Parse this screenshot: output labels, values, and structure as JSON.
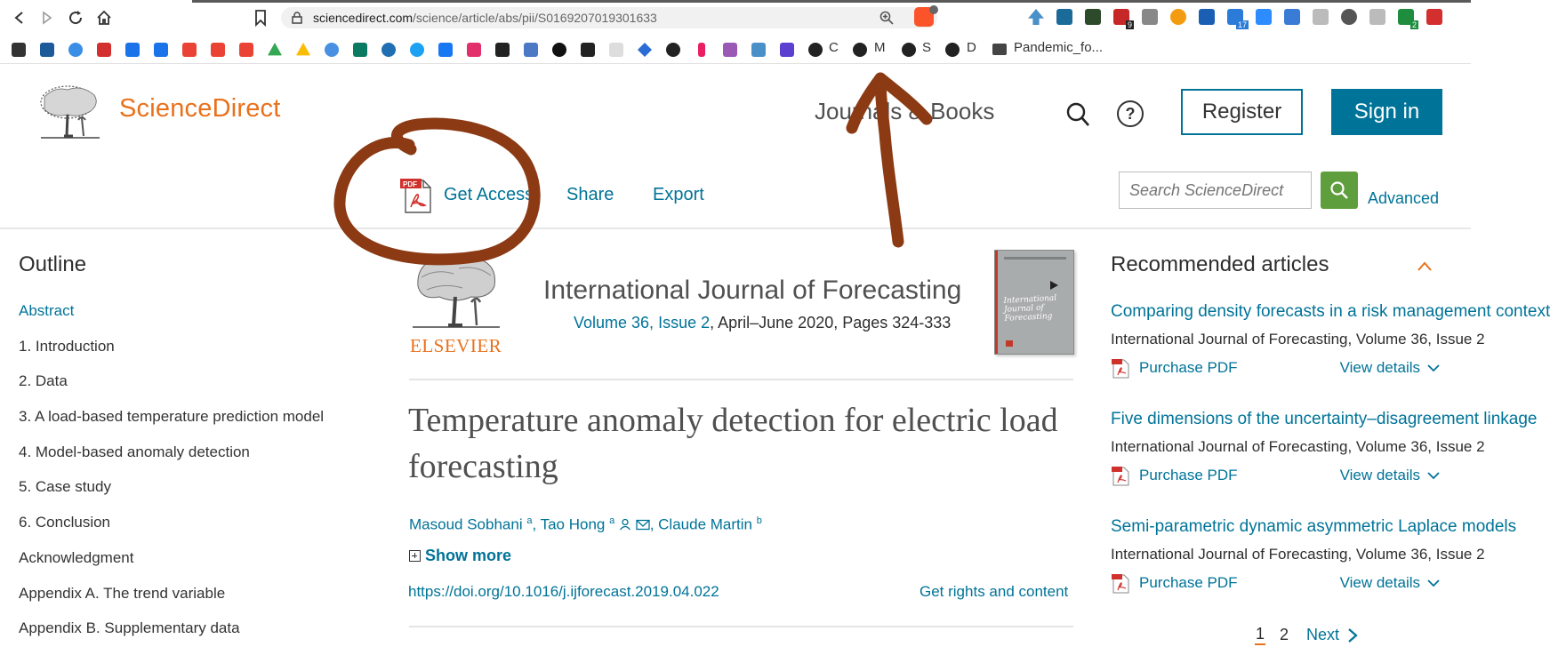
{
  "browser": {
    "url_host": "sciencedirect.com",
    "url_path": "/science/article/abs/pii/S0169207019301633",
    "bookmarks_text": [
      "C",
      "M",
      "S",
      "D"
    ],
    "folder_label": "Pandemic_fo...",
    "ext_badges": [
      "9",
      "17",
      "2"
    ]
  },
  "header": {
    "brand": "ScienceDirect",
    "journals_books": "Journals & Books",
    "register": "Register",
    "sign_in": "Sign in"
  },
  "actions": {
    "get_access": "Get Access",
    "share": "Share",
    "export": "Export",
    "search_placeholder": "Search ScienceDirect",
    "advanced": "Advanced"
  },
  "outline": {
    "title": "Outline",
    "items": [
      {
        "label": "Abstract"
      },
      {
        "label": "1. Introduction"
      },
      {
        "label": "2. Data"
      },
      {
        "label": "3. A load-based temperature prediction model"
      },
      {
        "label": "4. Model-based anomaly detection"
      },
      {
        "label": "5. Case study"
      },
      {
        "label": "6. Conclusion"
      },
      {
        "label": "Acknowledgment"
      },
      {
        "label": "Appendix A. The trend variable"
      },
      {
        "label": "Appendix B. Supplementary data"
      }
    ]
  },
  "article": {
    "publisher": "ELSEVIER",
    "journal": "International Journal of Forecasting",
    "volume_link": "Volume 36, Issue 2",
    "volume_rest": ", April–June 2020, Pages 324-333",
    "cover_text": "International Journal of Forecasting",
    "title": "Temperature anomaly detection for electric load forecasting",
    "authors": [
      {
        "name": "Masoud Sobhani",
        "sup": "a"
      },
      {
        "name": "Tao Hong",
        "sup": "a"
      },
      {
        "name": "Claude Martin",
        "sup": "b"
      }
    ],
    "show_more": "Show more",
    "doi": "https://doi.org/10.1016/j.ijforecast.2019.04.022",
    "rights": "Get rights and content"
  },
  "recommended": {
    "title": "Recommended articles",
    "purchase_label": "Purchase PDF",
    "details_label": "View details",
    "items": [
      {
        "title": "Comparing density forecasts in a risk management context",
        "source": "International Journal of Forecasting, Volume 36, Issue 2"
      },
      {
        "title": "Five dimensions of the uncertainty–disagreement linkage",
        "source": "International Journal of Forecasting, Volume 36, Issue 2"
      },
      {
        "title": "Semi-parametric dynamic asymmetric Laplace models",
        "source": "International Journal of Forecasting, Volume 36, Issue 2"
      }
    ],
    "pager": {
      "current": "1",
      "next_page": "2",
      "next_label": "Next"
    }
  },
  "colors": {
    "brand_orange": "#e9711c",
    "link_blue": "#007398",
    "annotation_brown": "#8b3a14",
    "search_green": "#5f9e3c"
  }
}
